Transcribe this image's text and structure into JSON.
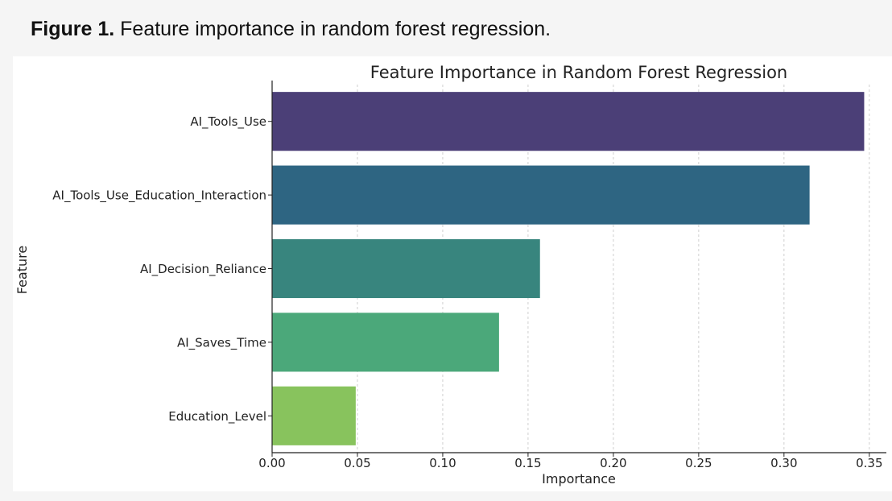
{
  "caption": {
    "label": "Figure 1.",
    "text": "Feature importance in random forest regression."
  },
  "chart_data": {
    "type": "bar",
    "orientation": "horizontal",
    "title": "Feature Importance in Random Forest Regression",
    "xlabel": "Importance",
    "ylabel": "Feature",
    "categories": [
      "AI_Tools_Use",
      "AI_Tools_Use_Education_Interaction",
      "AI_Decision_Reliance",
      "AI_Saves_Time",
      "Education_Level"
    ],
    "values": [
      0.347,
      0.315,
      0.157,
      0.133,
      0.049
    ],
    "colors": [
      "#4b3f77",
      "#2e6582",
      "#38857e",
      "#4ba87a",
      "#88c35d"
    ],
    "xlim": [
      0,
      0.36
    ],
    "xticks": [
      0.0,
      0.05,
      0.1,
      0.15,
      0.2,
      0.25,
      0.3,
      0.35
    ],
    "xtick_labels": [
      "0.00",
      "0.05",
      "0.10",
      "0.15",
      "0.20",
      "0.25",
      "0.30",
      "0.35"
    ],
    "grid": "vertical-dashed"
  }
}
